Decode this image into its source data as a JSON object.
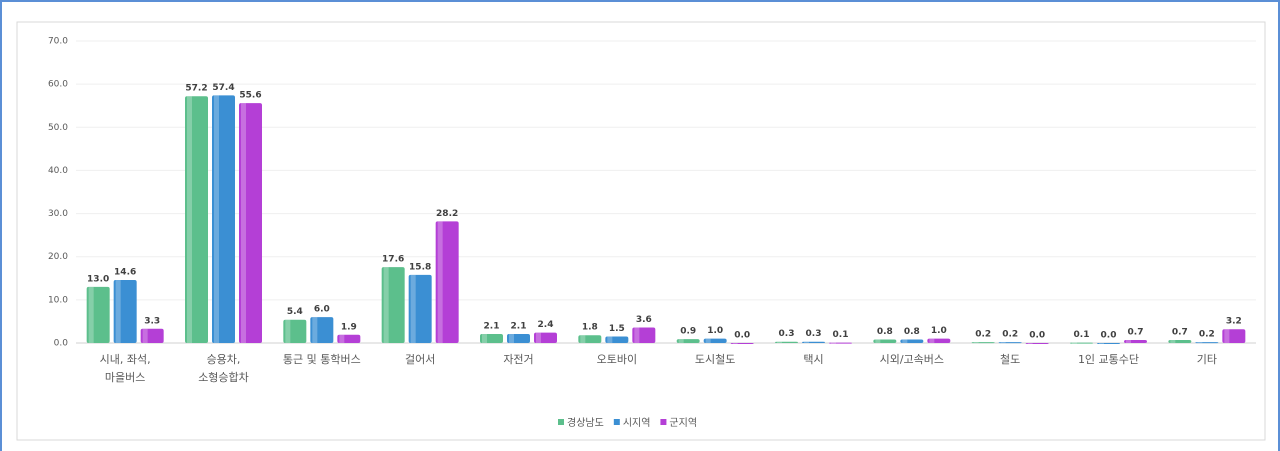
{
  "chart_data": {
    "type": "bar",
    "categories": [
      "시내, 좌석,\n마을버스",
      "승용차,\n소형승합차",
      "통근 및 통학버스",
      "걸어서",
      "자전거",
      "오토바이",
      "도시철도",
      "택시",
      "시외/고속버스",
      "철도",
      "1인 교통수단",
      "기타"
    ],
    "series": [
      {
        "name": "경상남도",
        "color": "#5cbf8c",
        "values": [
          13.0,
          57.2,
          5.4,
          17.6,
          2.1,
          1.8,
          0.9,
          0.3,
          0.8,
          0.2,
          0.1,
          0.7
        ],
        "value_labels": [
          "13.0",
          "57.2",
          "5.4",
          "17.6",
          "2.1",
          "1.8",
          "0.9",
          "0.3",
          "0.8",
          "0.2",
          "0.1",
          "0.7"
        ]
      },
      {
        "name": "시지역",
        "color": "#3b8fd3",
        "values": [
          14.6,
          57.4,
          6.0,
          15.8,
          2.1,
          1.5,
          1.0,
          0.3,
          0.8,
          0.2,
          0.0,
          0.2
        ],
        "value_labels": [
          "14.6",
          "57.4",
          "6.0",
          "15.8",
          "2.1",
          "1.5",
          "1.0",
          "0.3",
          "0.8",
          "0.2",
          "0.0",
          "0.2"
        ]
      },
      {
        "name": "군지역",
        "color": "#b43fd6",
        "values": [
          3.3,
          55.6,
          1.9,
          28.2,
          2.4,
          3.6,
          0.0,
          0.1,
          1.0,
          0.0,
          0.7,
          3.2
        ],
        "value_labels": [
          "3.3",
          "55.6",
          "1.9",
          "28.2",
          "2.4",
          "3.6",
          "0.0",
          "0.1",
          "1.0",
          "0.0",
          "0.7",
          "3.2"
        ]
      }
    ],
    "ylim": [
      0,
      70
    ],
    "yticks": [
      {
        "value": 0,
        "label": "0.0"
      },
      {
        "value": 10,
        "label": "10.0"
      },
      {
        "value": 20,
        "label": "20.0"
      },
      {
        "value": 30,
        "label": "30.0"
      },
      {
        "value": 40,
        "label": "40.0"
      },
      {
        "value": 50,
        "label": "50.0"
      },
      {
        "value": 60,
        "label": "60.0"
      },
      {
        "value": 70,
        "label": "70.0"
      }
    ],
    "grid": true,
    "legend": "bottom"
  }
}
